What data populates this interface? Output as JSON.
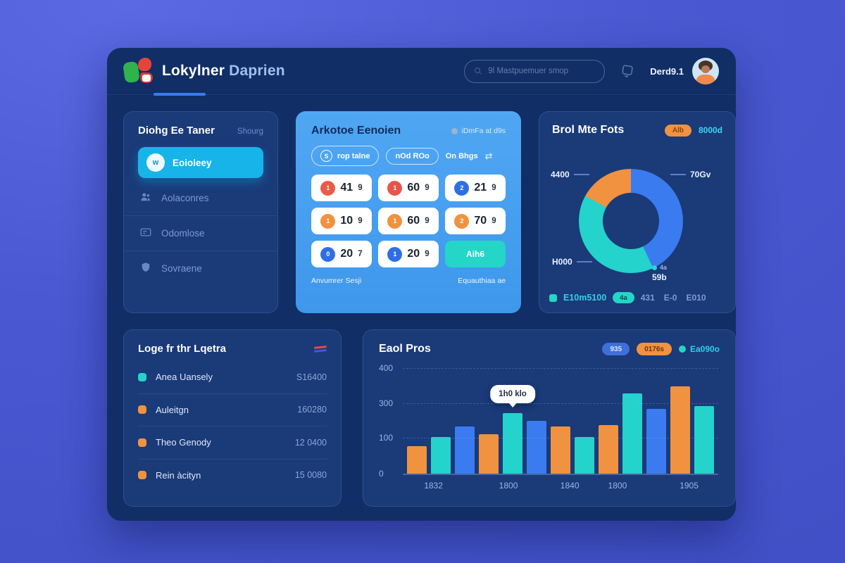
{
  "header": {
    "brand_bold": "Lokylner",
    "brand_light": "Daprien",
    "search_placeholder": "9l  Mastpuemuer smop",
    "user_label": "Derd9.1"
  },
  "sidebar": {
    "title": "Diohg Ee Taner",
    "title_badge": "Shourg",
    "items": [
      {
        "label": "Eoioleey",
        "active": true,
        "icon": "dot",
        "glyph": "w"
      },
      {
        "label": "Aolaconres",
        "icon": "users"
      },
      {
        "label": "Odomlose",
        "icon": "card"
      },
      {
        "label": "Sovraene",
        "icon": "shield"
      }
    ]
  },
  "keypad_card": {
    "title": "Arkotoe Eenoien",
    "subtitle": "iDmFa at d9s",
    "pills": [
      {
        "icon": "S",
        "label": "rop talne"
      },
      {
        "label": "nOd ROo"
      },
      {
        "label": "On Bhgs",
        "icon_right": "⇄"
      }
    ],
    "cells": [
      {
        "badge": "1",
        "badge_color": "#e85c47",
        "num": "41",
        "sub": "9"
      },
      {
        "badge": "1",
        "badge_color": "#e8544a",
        "num": "60",
        "sub": "9"
      },
      {
        "badge": "2",
        "badge_color": "#2f6fe4",
        "num": "21",
        "sub": "9"
      },
      {
        "badge": "1",
        "badge_color": "#f0923f",
        "num": "10",
        "sub": "9"
      },
      {
        "badge": "1",
        "badge_color": "#f0923f",
        "num": "60",
        "sub": "9"
      },
      {
        "badge": "2",
        "badge_color": "#f0923f",
        "num": "70",
        "sub": "9"
      },
      {
        "badge": "0",
        "badge_color": "#2f6fe4",
        "num": "20",
        "sub": "7"
      },
      {
        "badge": "1",
        "badge_color": "#2f6fe4",
        "num": "20",
        "sub": "9"
      },
      {
        "action": "Aih6"
      }
    ],
    "footer_left": "Anvumrer Sesji",
    "footer_right": "Equauthiaa ae"
  },
  "donut_card": {
    "title": "Brol Mte Fots",
    "badge": "Alb",
    "badge_value": "8000d",
    "chart_data": {
      "type": "pie",
      "segments": [
        {
          "label": "70Gv",
          "value": 43,
          "color": "#3a7bf0"
        },
        {
          "label": "H000",
          "value": 40,
          "color": "#24d3cb"
        },
        {
          "label": "4400",
          "value": 17,
          "color": "#f0923f"
        }
      ]
    },
    "callouts": {
      "top_left": "4400",
      "top_right": "70Gv",
      "bottom_left": "H000",
      "bottom_right": "59b",
      "bottom_right_tag": "4a"
    },
    "footer": {
      "legend": "E10m5100",
      "pill": "4a",
      "values": [
        "431",
        "E-0",
        "E010"
      ]
    }
  },
  "list_card": {
    "title": "Loge fr thr Lqetra",
    "rows": [
      {
        "bullet": "#24d3cb",
        "label": "Anea Uansely",
        "value": "S16400"
      },
      {
        "bullet": "#f0923f",
        "label": "Auleitgn",
        "value": "160280"
      },
      {
        "bullet": "#f0923f",
        "label": "Theo Genody",
        "value": "12 0400"
      },
      {
        "bullet": "#f0923f",
        "label": "Rein àcityn",
        "value": "15 0080"
      }
    ]
  },
  "bar_card": {
    "title": "Eaol Pros",
    "legend": [
      {
        "type": "pill",
        "color": "blue",
        "label": "935"
      },
      {
        "type": "pill",
        "color": "orange",
        "label": "0176s"
      },
      {
        "type": "dot",
        "color": "teal",
        "label": "Ea090o"
      }
    ],
    "chart_data": {
      "type": "bar",
      "ylim": [
        0,
        400
      ],
      "y_ticks": [
        "400",
        "300",
        "100",
        "0"
      ],
      "y_tick_pos_pct": [
        0,
        33,
        66,
        100
      ],
      "x_labels": [
        "1832",
        "1800",
        "1840",
        "1800",
        "1905"
      ],
      "x_positions_pct": [
        9,
        31,
        49,
        63,
        84
      ],
      "grid": "dashed",
      "bars": [
        {
          "value": 105,
          "color": "orange"
        },
        {
          "value": 140,
          "color": "teal"
        },
        {
          "value": 180,
          "color": "blue"
        },
        {
          "value": 150,
          "color": "orange"
        },
        {
          "value": 230,
          "color": "teal",
          "tooltip": "1h0 klo"
        },
        {
          "value": 200,
          "color": "blue"
        },
        {
          "value": 180,
          "color": "orange"
        },
        {
          "value": 140,
          "color": "teal"
        },
        {
          "value": 185,
          "color": "orange"
        },
        {
          "value": 305,
          "color": "teal"
        },
        {
          "value": 245,
          "color": "blue"
        },
        {
          "value": 330,
          "color": "orange"
        },
        {
          "value": 255,
          "color": "teal"
        }
      ],
      "colors": {
        "orange": "#f0923f",
        "teal": "#24d3cb",
        "blue": "#3a7bf0"
      }
    }
  }
}
